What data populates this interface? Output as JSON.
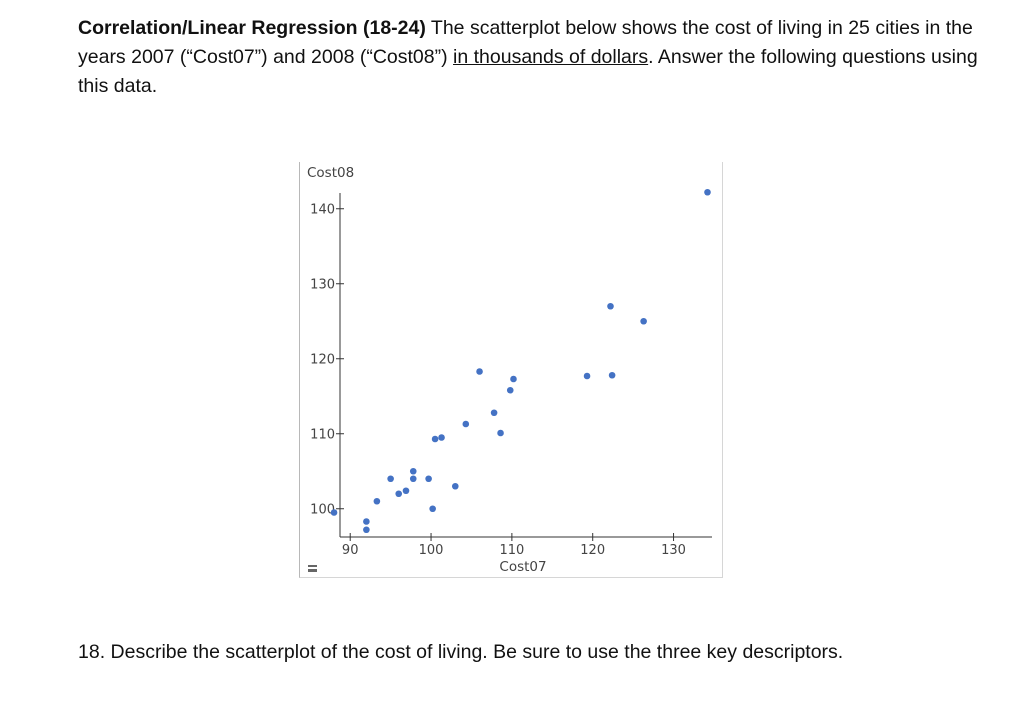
{
  "intro": {
    "title": "Correlation/Linear Regression (18-24)",
    "text_before_underline": " The scatterplot below shows the cost of living in 25 cities in the years 2007 (“Cost07”) and 2008 (“Cost08”) ",
    "underlined": "in thousands of dollars",
    "text_after_underline": ".   Answer the following questions using this data."
  },
  "question": "18.  Describe the scatterplot of the cost of living.  Be sure to use the three key descriptors.",
  "chart_data": {
    "type": "scatter",
    "xlabel": "Cost07",
    "ylabel": "Cost08",
    "xlim": [
      87.5,
      135.5
    ],
    "ylim": [
      96.5,
      142.5
    ],
    "xticks": [
      90,
      100,
      110,
      120,
      130
    ],
    "yticks": [
      100,
      110,
      120,
      130,
      140
    ],
    "point_color": "#4472c4",
    "points": [
      [
        88.0,
        99.5
      ],
      [
        92.0,
        98.3
      ],
      [
        92.0,
        97.2
      ],
      [
        93.3,
        101.0
      ],
      [
        95.0,
        104.0
      ],
      [
        96.0,
        102.0
      ],
      [
        96.9,
        102.4
      ],
      [
        97.8,
        104.0
      ],
      [
        97.8,
        105.0
      ],
      [
        99.7,
        104.0
      ],
      [
        100.2,
        100.0
      ],
      [
        100.5,
        109.3
      ],
      [
        101.3,
        109.5
      ],
      [
        103.0,
        103.0
      ],
      [
        104.3,
        111.3
      ],
      [
        106.0,
        118.3
      ],
      [
        107.8,
        112.8
      ],
      [
        108.6,
        110.1
      ],
      [
        109.8,
        115.8
      ],
      [
        110.2,
        117.3
      ],
      [
        119.3,
        117.7
      ],
      [
        122.2,
        127.0
      ],
      [
        122.4,
        117.8
      ],
      [
        126.3,
        125.0
      ],
      [
        134.2,
        142.2
      ]
    ]
  }
}
